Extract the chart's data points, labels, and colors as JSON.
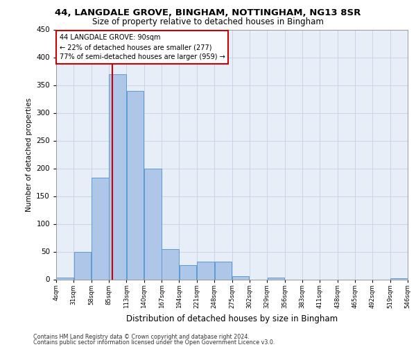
{
  "title1": "44, LANGDALE GROVE, BINGHAM, NOTTINGHAM, NG13 8SR",
  "title2": "Size of property relative to detached houses in Bingham",
  "xlabel": "Distribution of detached houses by size in Bingham",
  "ylabel": "Number of detached properties",
  "bar_values": [
    3,
    50,
    183,
    370,
    340,
    199,
    54,
    26,
    32,
    32,
    6,
    0,
    3,
    0,
    0,
    0,
    0,
    0,
    0,
    2
  ],
  "bar_left_edges": [
    4,
    31,
    58,
    85,
    112,
    139,
    166,
    193,
    220,
    247,
    274,
    301,
    328,
    355,
    382,
    409,
    436,
    463,
    490,
    517
  ],
  "bin_width": 27,
  "tick_labels": [
    "4sqm",
    "31sqm",
    "58sqm",
    "85sqm",
    "113sqm",
    "140sqm",
    "167sqm",
    "194sqm",
    "221sqm",
    "248sqm",
    "275sqm",
    "302sqm",
    "329sqm",
    "356sqm",
    "383sqm",
    "411sqm",
    "438sqm",
    "465sqm",
    "492sqm",
    "519sqm",
    "546sqm"
  ],
  "bar_color": "#aec6e8",
  "bar_edge_color": "#5b9bd5",
  "grid_color": "#c8d4e8",
  "bg_color": "#e8eef7",
  "property_line_x": 90,
  "annotation_text": "44 LANGDALE GROVE: 90sqm\n← 22% of detached houses are smaller (277)\n77% of semi-detached houses are larger (959) →",
  "annotation_box_color": "#ffffff",
  "annotation_box_edge": "#cc0000",
  "line_color": "#cc0000",
  "footnote1": "Contains HM Land Registry data © Crown copyright and database right 2024.",
  "footnote2": "Contains public sector information licensed under the Open Government Licence v3.0.",
  "ylim": [
    0,
    450
  ],
  "yticks": [
    0,
    50,
    100,
    150,
    200,
    250,
    300,
    350,
    400,
    450
  ]
}
